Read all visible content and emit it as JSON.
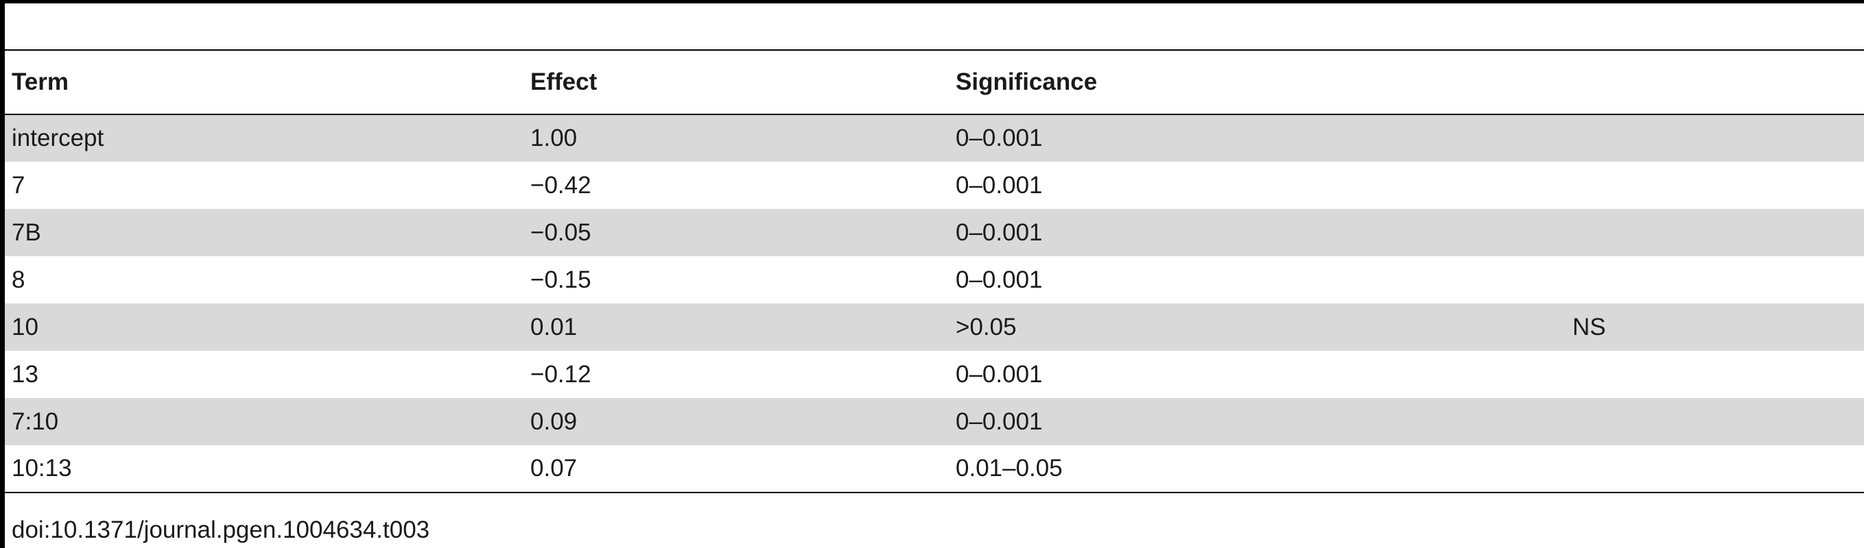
{
  "table": {
    "headers": [
      "Term",
      "Effect",
      "Significance",
      ""
    ],
    "rows": [
      {
        "term": "intercept",
        "effect": "1.00",
        "significance": "0–0.001",
        "note": ""
      },
      {
        "term": "7",
        "effect": "−0.42",
        "significance": "0–0.001",
        "note": ""
      },
      {
        "term": "7B",
        "effect": "−0.05",
        "significance": "0–0.001",
        "note": ""
      },
      {
        "term": "8",
        "effect": "−0.15",
        "significance": "0–0.001",
        "note": ""
      },
      {
        "term": "10",
        "effect": "0.01",
        "significance": ">0.05",
        "note": "NS"
      },
      {
        "term": "13",
        "effect": "−0.12",
        "significance": "0–0.001",
        "note": ""
      },
      {
        "term": "7:10",
        "effect": "0.09",
        "significance": "0–0.001",
        "note": ""
      },
      {
        "term": "10:13",
        "effect": "0.07",
        "significance": "0.01–0.05",
        "note": ""
      }
    ]
  },
  "footer": {
    "doi": "doi:10.1371/journal.pgen.1004634.t003"
  }
}
